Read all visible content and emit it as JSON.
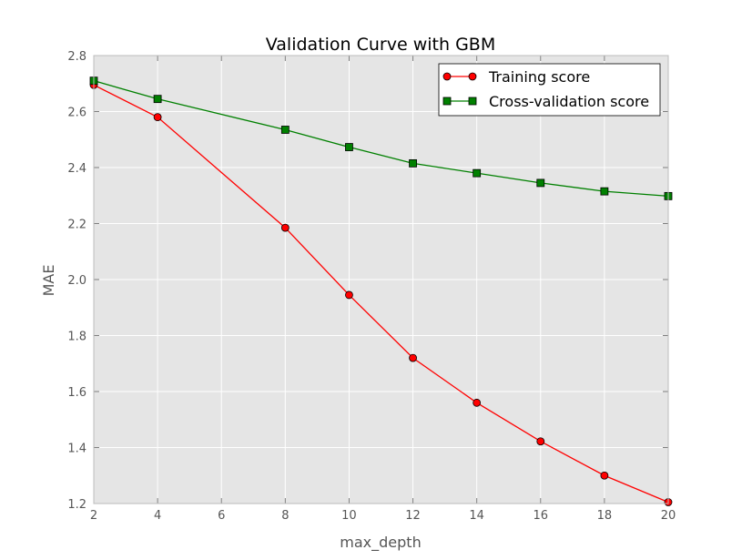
{
  "chart_data": {
    "type": "line",
    "title": "Validation Curve with GBM",
    "xlabel": "max_depth",
    "ylabel": "MAE",
    "xlim": [
      2,
      20
    ],
    "ylim": [
      1.2,
      2.8
    ],
    "xticks": [
      "2",
      "4",
      "6",
      "8",
      "10",
      "12",
      "14",
      "16",
      "18",
      "20"
    ],
    "yticks": [
      "1.2",
      "1.4",
      "1.6",
      "1.8",
      "2.0",
      "2.2",
      "2.4",
      "2.6",
      "2.8"
    ],
    "grid": true,
    "legend_position": "top-right",
    "background": "#e5e5e5",
    "series": [
      {
        "name": "Training score",
        "color": "#ff0000",
        "marker": "circle",
        "x": [
          2,
          4,
          8,
          10,
          12,
          14,
          16,
          18,
          20
        ],
        "y": [
          2.695,
          2.58,
          2.185,
          1.945,
          1.72,
          1.56,
          1.422,
          1.3,
          1.205
        ]
      },
      {
        "name": "Cross-validation score",
        "color": "#008000",
        "marker": "square",
        "x": [
          2,
          4,
          8,
          10,
          12,
          14,
          16,
          18,
          20
        ],
        "y": [
          2.71,
          2.645,
          2.535,
          2.473,
          2.415,
          2.38,
          2.345,
          2.315,
          2.298
        ]
      }
    ]
  }
}
